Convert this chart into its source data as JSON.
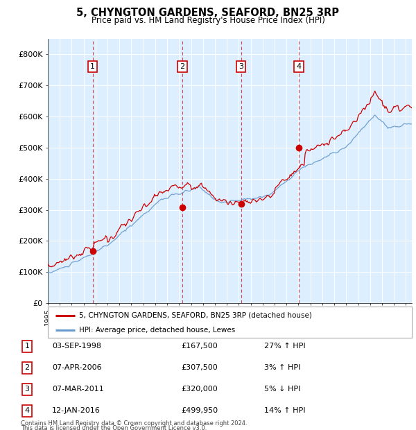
{
  "title": "5, CHYNGTON GARDENS, SEAFORD, BN25 3RP",
  "subtitle": "Price paid vs. HM Land Registry's House Price Index (HPI)",
  "transactions": [
    {
      "id": 1,
      "date": "03-SEP-1998",
      "year": 1998.75,
      "price": 167500,
      "pct": "27%",
      "dir": "↑"
    },
    {
      "id": 2,
      "date": "07-APR-2006",
      "year": 2006.27,
      "price": 307500,
      "pct": "3%",
      "dir": "↑"
    },
    {
      "id": 3,
      "date": "07-MAR-2011",
      "year": 2011.18,
      "price": 320000,
      "pct": "5%",
      "dir": "↓"
    },
    {
      "id": 4,
      "date": "12-JAN-2016",
      "year": 2016.03,
      "price": 499950,
      "pct": "14%",
      "dir": "↑"
    }
  ],
  "property_label": "5, CHYNGTON GARDENS, SEAFORD, BN25 3RP (detached house)",
  "hpi_label": "HPI: Average price, detached house, Lewes",
  "property_color": "#cc0000",
  "hpi_color": "#6699cc",
  "plot_bg_color": "#ddeeff",
  "grid_color": "#ffffff",
  "footnote_line1": "Contains HM Land Registry data © Crown copyright and database right 2024.",
  "footnote_line2": "This data is licensed under the Open Government Licence v3.0.",
  "ylim": [
    0,
    850000
  ],
  "xlim_start": 1995.0,
  "xlim_end": 2025.5,
  "yticks": [
    0,
    100000,
    200000,
    300000,
    400000,
    500000,
    600000,
    700000,
    800000
  ],
  "ytick_labels": [
    "£0",
    "£100K",
    "£200K",
    "£300K",
    "£400K",
    "£500K",
    "£600K",
    "£700K",
    "£800K"
  ]
}
